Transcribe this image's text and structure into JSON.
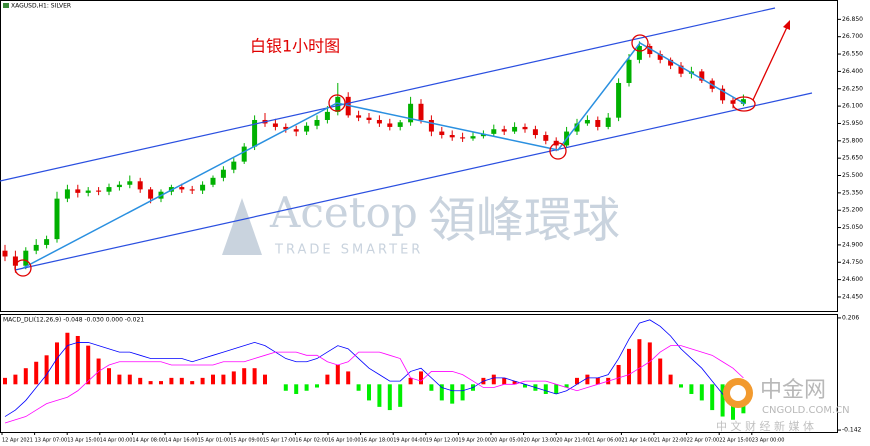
{
  "chart_data": [
    {
      "type": "candlestick",
      "title": "XAGUSD,H1: SILVER",
      "annotation": "白银1小时图",
      "up_color": "#00b000",
      "down_color": "#e00000",
      "open": [
        24.85,
        24.8,
        24.72,
        24.85,
        24.9,
        24.95,
        25.3,
        25.38,
        25.35,
        25.37,
        25.36,
        25.4,
        25.42,
        25.45,
        25.38,
        25.3,
        25.36,
        25.4,
        25.38,
        25.37,
        25.42,
        25.48,
        25.55,
        25.62,
        25.75,
        25.98,
        25.95,
        25.92,
        25.9,
        25.88,
        25.93,
        25.98,
        26.05,
        26.18,
        26.02,
        26.0,
        25.98,
        25.95,
        25.92,
        25.96,
        26.12,
        25.98,
        25.88,
        25.85,
        25.83,
        25.82,
        25.84,
        25.86,
        25.9,
        25.88,
        25.92,
        25.9,
        25.85,
        25.8,
        25.76,
        25.88,
        25.95,
        25.98,
        25.92,
        26.0,
        26.3,
        26.5,
        26.62,
        26.55,
        26.5,
        26.45,
        26.38,
        26.4,
        26.32,
        26.25,
        26.15,
        26.12
      ],
      "high": [
        24.9,
        24.85,
        24.88,
        24.95,
        24.98,
        25.36,
        25.42,
        25.42,
        25.4,
        25.4,
        25.43,
        25.45,
        25.5,
        25.48,
        25.4,
        25.38,
        25.42,
        25.43,
        25.41,
        25.45,
        25.5,
        25.58,
        25.65,
        25.78,
        26.02,
        26.04,
        25.99,
        25.95,
        25.93,
        25.96,
        26.02,
        26.1,
        26.3,
        26.22,
        26.06,
        26.04,
        26.02,
        25.99,
        25.98,
        26.18,
        26.16,
        26.02,
        25.92,
        25.89,
        25.87,
        25.88,
        25.89,
        25.94,
        25.93,
        25.96,
        25.95,
        25.93,
        25.88,
        25.83,
        25.92,
        25.99,
        26.02,
        26.01,
        26.04,
        26.34,
        26.55,
        26.66,
        26.64,
        26.58,
        26.52,
        26.48,
        26.44,
        26.42,
        26.34,
        26.28,
        26.18,
        26.2
      ],
      "low": [
        24.76,
        24.66,
        24.69,
        24.82,
        24.87,
        24.92,
        25.27,
        25.31,
        25.32,
        25.33,
        25.33,
        25.37,
        25.39,
        25.35,
        25.26,
        25.27,
        25.33,
        25.35,
        25.34,
        25.34,
        25.4,
        25.45,
        25.52,
        25.6,
        25.72,
        25.92,
        25.89,
        25.87,
        25.84,
        25.85,
        25.9,
        25.95,
        26.02,
        26.0,
        25.97,
        25.95,
        25.92,
        25.89,
        25.89,
        25.93,
        25.95,
        25.84,
        25.82,
        25.8,
        25.79,
        25.8,
        25.82,
        25.84,
        25.85,
        25.86,
        25.87,
        25.82,
        25.77,
        25.71,
        25.74,
        25.85,
        25.93,
        25.89,
        25.9,
        25.97,
        26.27,
        26.47,
        26.52,
        26.47,
        26.42,
        26.35,
        26.34,
        26.3,
        26.22,
        26.12,
        26.08,
        26.1
      ],
      "close": [
        24.8,
        24.72,
        24.85,
        24.9,
        24.95,
        25.3,
        25.38,
        25.35,
        25.37,
        25.36,
        25.4,
        25.42,
        25.45,
        25.38,
        25.3,
        25.36,
        25.4,
        25.38,
        25.37,
        25.42,
        25.48,
        25.55,
        25.62,
        25.75,
        25.98,
        25.95,
        25.92,
        25.9,
        25.88,
        25.93,
        25.98,
        26.05,
        26.18,
        26.02,
        26.0,
        25.98,
        25.95,
        25.92,
        25.96,
        26.12,
        25.98,
        25.88,
        25.85,
        25.83,
        25.82,
        25.84,
        25.86,
        25.9,
        25.88,
        25.92,
        25.9,
        25.85,
        25.8,
        25.76,
        25.88,
        25.95,
        25.98,
        25.92,
        26.0,
        26.3,
        26.5,
        26.62,
        26.55,
        26.5,
        26.45,
        26.38,
        26.4,
        26.32,
        26.25,
        26.15,
        26.12,
        26.16
      ],
      "ylim": [
        24.32,
        27.0
      ],
      "yticks": [
        {
          "value": 26.85,
          "label": "26.850"
        },
        {
          "value": 26.7,
          "label": "26.700"
        },
        {
          "value": 26.55,
          "label": "26.550"
        },
        {
          "value": 26.4,
          "label": "26.400"
        },
        {
          "value": 26.25,
          "label": "26.250"
        },
        {
          "value": 26.1,
          "label": "26.100"
        },
        {
          "value": 25.95,
          "label": "25.950"
        },
        {
          "value": 25.8,
          "label": "25.800"
        },
        {
          "value": 25.65,
          "label": "25.650"
        },
        {
          "value": 25.5,
          "label": "25.500"
        },
        {
          "value": 25.35,
          "label": "25.350"
        },
        {
          "value": 25.2,
          "label": "25.200"
        },
        {
          "value": 25.05,
          "label": "25.050"
        },
        {
          "value": 24.9,
          "label": "24.900"
        },
        {
          "value": 24.75,
          "label": "24.750"
        },
        {
          "value": 24.6,
          "label": "24.600"
        },
        {
          "value": 24.45,
          "label": "24.450"
        }
      ],
      "x_labels": [
        "12 Apr 2021",
        "13 Apr 07:00",
        "13 Apr 15:00",
        "14 Apr 00:00",
        "14 Apr 08:00",
        "14 Apr 16:00",
        "15 Apr 01:00",
        "15 Apr 09:00",
        "15 Apr 17:00",
        "16 Apr 02:00",
        "16 Apr 10:00",
        "16 Apr 18:00",
        "19 Apr 04:00",
        "19 Apr 12:00",
        "19 Apr 20:00",
        "20 Apr 05:00",
        "20 Apr 13:00",
        "20 Apr 21:00",
        "21 Apr 06:00",
        "21 Apr 14:00",
        "21 Apr 22:00",
        "22 Apr 07:00",
        "22 Apr 15:00",
        "23 Apr 00:00"
      ]
    },
    {
      "type": "macd",
      "label": "MACD_DLI(12,26,9) -0.048 -0.030 0.000 -0.021",
      "histogram": {
        "pos_color": "#ff0000",
        "neg_color": "#00ee00",
        "values": [
          0.02,
          0.03,
          0.05,
          0.07,
          0.09,
          0.13,
          0.16,
          0.15,
          0.12,
          0.08,
          0.05,
          0.03,
          0.03,
          0.02,
          0.01,
          0.01,
          0.02,
          0.02,
          0.01,
          0.02,
          0.03,
          0.03,
          0.04,
          0.05,
          0.05,
          0.03,
          0.0,
          -0.02,
          -0.03,
          -0.02,
          -0.01,
          0.03,
          0.06,
          0.04,
          -0.02,
          -0.05,
          -0.07,
          -0.08,
          -0.07,
          0.02,
          0.04,
          -0.02,
          -0.05,
          -0.06,
          -0.05,
          -0.02,
          0.02,
          0.03,
          0.02,
          0.01,
          -0.01,
          -0.02,
          -0.03,
          -0.03,
          -0.01,
          0.02,
          0.03,
          0.02,
          0.02,
          0.06,
          0.11,
          0.14,
          0.13,
          0.08,
          0.03,
          -0.01,
          -0.03,
          -0.05,
          -0.08,
          -0.1,
          -0.11,
          -0.09
        ]
      },
      "lines": [
        {
          "color": "#0000ff",
          "values": [
            -0.1,
            -0.08,
            -0.05,
            -0.01,
            0.03,
            0.08,
            0.12,
            0.13,
            0.13,
            0.12,
            0.11,
            0.1,
            0.1,
            0.09,
            0.08,
            0.08,
            0.08,
            0.08,
            0.07,
            0.08,
            0.09,
            0.1,
            0.11,
            0.12,
            0.13,
            0.12,
            0.1,
            0.08,
            0.07,
            0.07,
            0.08,
            0.1,
            0.12,
            0.11,
            0.08,
            0.05,
            0.03,
            0.01,
            0.01,
            0.04,
            0.05,
            0.02,
            -0.01,
            -0.02,
            -0.02,
            -0.01,
            0.01,
            0.02,
            0.02,
            0.01,
            0.0,
            -0.01,
            -0.02,
            -0.03,
            -0.02,
            0.0,
            0.02,
            0.02,
            0.03,
            0.08,
            0.14,
            0.19,
            0.2,
            0.18,
            0.15,
            0.11,
            0.08,
            0.05,
            0.01,
            -0.03,
            -0.06,
            -0.07
          ]
        },
        {
          "color": "#ff00ff",
          "values": [
            -0.12,
            -0.11,
            -0.1,
            -0.08,
            -0.06,
            -0.05,
            -0.04,
            -0.02,
            0.01,
            0.04,
            0.06,
            0.07,
            0.07,
            0.07,
            0.07,
            0.07,
            0.06,
            0.06,
            0.06,
            0.06,
            0.06,
            0.07,
            0.07,
            0.07,
            0.08,
            0.09,
            0.1,
            0.1,
            0.1,
            0.09,
            0.09,
            0.07,
            0.06,
            0.07,
            0.1,
            0.1,
            0.1,
            0.09,
            0.08,
            0.02,
            0.01,
            0.04,
            0.04,
            0.04,
            0.03,
            0.01,
            -0.01,
            -0.01,
            0.0,
            0.0,
            0.01,
            0.01,
            0.01,
            0.0,
            -0.01,
            -0.02,
            -0.01,
            0.0,
            0.01,
            0.02,
            0.03,
            0.05,
            0.07,
            0.1,
            0.12,
            0.12,
            0.11,
            0.1,
            0.09,
            0.07,
            0.05,
            0.02
          ]
        }
      ],
      "ylim": [
        -0.148,
        0.212
      ],
      "yticks": [
        0.206,
        -0.142
      ]
    }
  ],
  "watermark": {
    "brand": "Acetop",
    "brand_cn": "領峰環球",
    "slogan": "TRADE SMARTER",
    "site_cn": "中金网",
    "site": "CNGOLD.COM.CN",
    "tagline": "中 文 财 经 新 媒 体"
  }
}
